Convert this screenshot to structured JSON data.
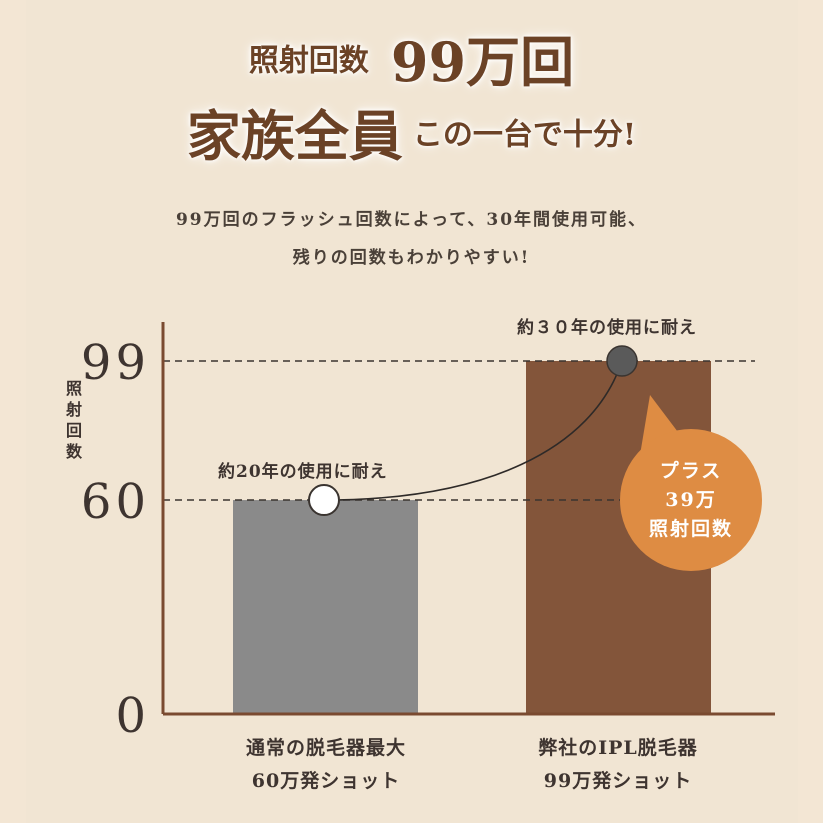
{
  "headline": {
    "line1_small": "照射回数",
    "line1_big": "99万回",
    "line2_big": "家族全員",
    "line2_small": "この一台で十分!"
  },
  "subtitle": {
    "line1": "99万回のフラッシュ回数によって、30年間使用可能、",
    "line2": "残りの回数もわかりやすい!"
  },
  "chart_data": {
    "type": "bar",
    "ylabel": "照射回数",
    "ylim": [
      0,
      108
    ],
    "yticks": [
      0,
      60,
      99
    ],
    "ytick_labels": [
      "0",
      "60",
      "99"
    ],
    "grid": "dashed reference lines at 60 and 99",
    "categories": [
      {
        "line1": "通常の脱毛器最大",
        "line2": "60万発ショット"
      },
      {
        "line1": "弊社のIPL脱毛器",
        "line2": "99万発ショット"
      }
    ],
    "values": [
      60,
      99
    ],
    "colors": [
      "#8a8a8a",
      "#83553a"
    ],
    "annotations": [
      {
        "text": "約20年の使用に耐え",
        "value": 60
      },
      {
        "text": "約３０年の使用に耐え",
        "value": 99
      }
    ],
    "badge": {
      "line1": "プラス",
      "line2": "39万",
      "line3": "照射回数",
      "color": "#de8c43"
    }
  }
}
